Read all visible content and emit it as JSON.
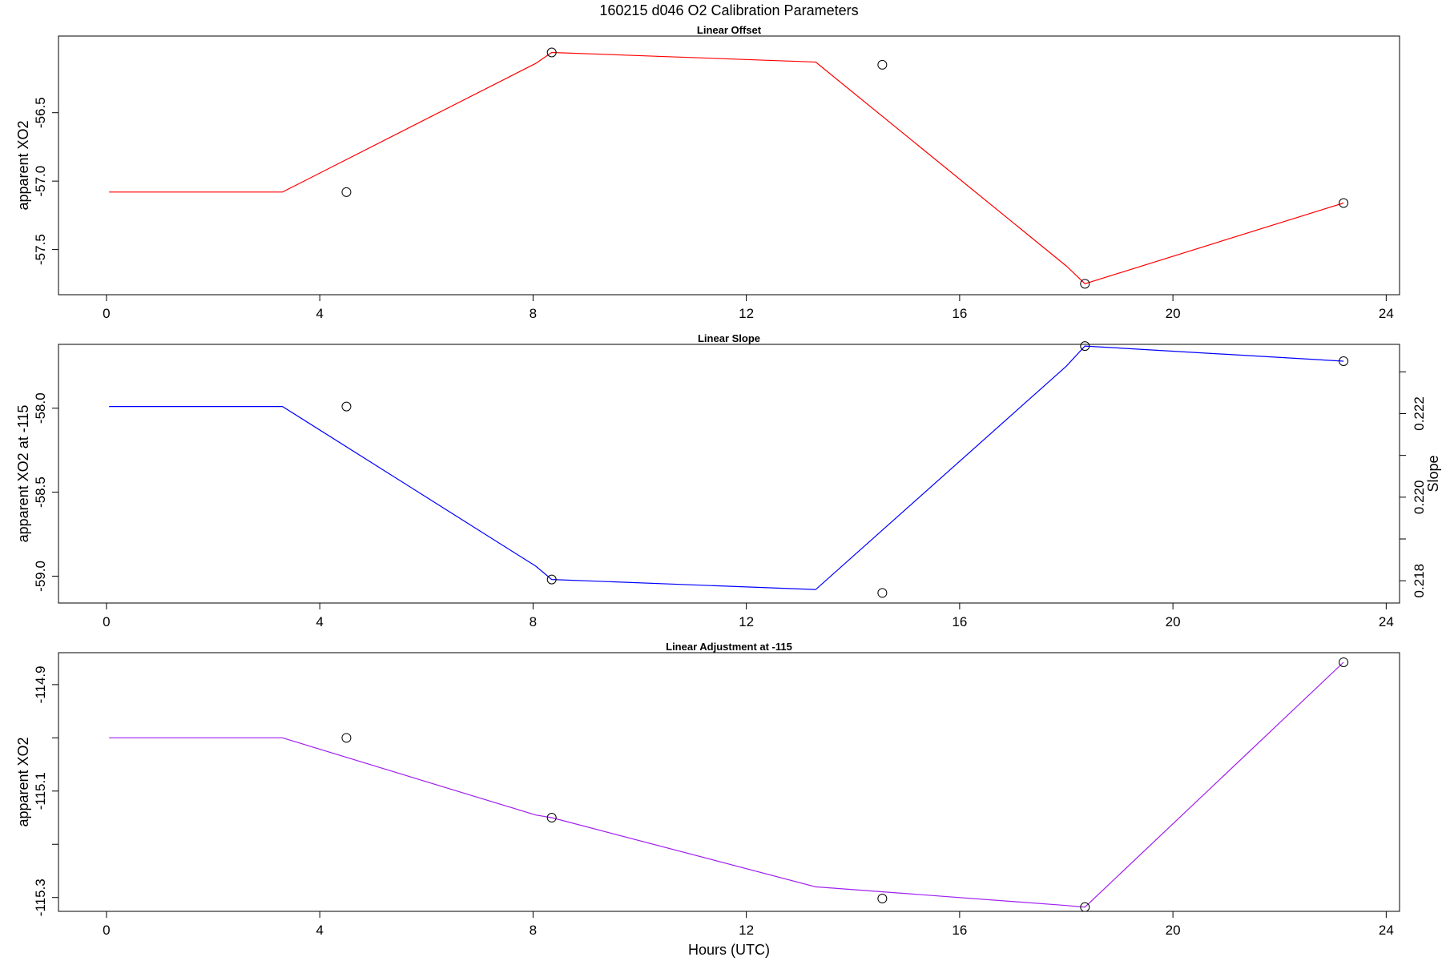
{
  "title": "160215   d046   O2 Calibration Parameters",
  "xlabel": "Hours (UTC)",
  "chart_data": [
    {
      "type": "line",
      "title": "Linear Offset",
      "xlabel": "",
      "ylabel": "apparent XO2",
      "xlim": [
        -0.9,
        24.25
      ],
      "ylim": [
        -57.83,
        -55.94
      ],
      "xticks": [
        0,
        4,
        8,
        12,
        16,
        20,
        24
      ],
      "yticks": [
        -56.5,
        -57.0,
        -57.5
      ],
      "ytick_labels": [
        "-56.5",
        "-57.0",
        "-57.5"
      ],
      "grid": false,
      "line_color": "#ff0000",
      "series": [
        {
          "type": "line",
          "x": [
            0.05,
            3.3,
            8.05,
            8.35,
            13.3,
            18.0,
            18.35,
            23.2
          ],
          "y": [
            -57.08,
            -57.08,
            -56.14,
            -56.06,
            -56.13,
            -57.62,
            -57.75,
            -57.16
          ]
        },
        {
          "type": "scatter",
          "marker": "open-circle",
          "x": [
            4.5,
            8.35,
            14.55,
            18.35,
            23.2
          ],
          "y": [
            -57.08,
            -56.06,
            -56.15,
            -57.75,
            -57.16
          ]
        }
      ]
    },
    {
      "type": "line",
      "title": "Linear Slope",
      "xlabel": "",
      "ylabel": "apparent XO2 at -115",
      "ylabel_right": "Slope",
      "xlim": [
        -0.9,
        24.25
      ],
      "ylim": [
        -59.16,
        -57.62
      ],
      "xticks": [
        0,
        4,
        8,
        12,
        16,
        20,
        24
      ],
      "yticks": [
        -58.0,
        -58.5,
        -59.0
      ],
      "ytick_labels": [
        "-58.0",
        "-58.5",
        "-59.0"
      ],
      "right_yticks": [
        0.218,
        0.219,
        0.22,
        0.221,
        0.222,
        0.223
      ],
      "right_ytick_labels": [
        "0.218",
        "",
        "0.220",
        "",
        "0.222",
        ""
      ],
      "right_axis_map": {
        "y1": [
          -59.0,
          -58.0
        ],
        "y2": [
          0.21811,
          0.22213
        ]
      },
      "grid": false,
      "line_color": "#0000ff",
      "series": [
        {
          "type": "line",
          "x": [
            0.05,
            3.3,
            8.05,
            8.35,
            13.3,
            18.0,
            18.35,
            23.2
          ],
          "y": [
            -57.99,
            -57.99,
            -58.94,
            -59.02,
            -59.08,
            -57.75,
            -57.63,
            -57.72
          ]
        },
        {
          "type": "scatter",
          "marker": "open-circle",
          "x": [
            4.5,
            8.35,
            14.55,
            18.35,
            23.2
          ],
          "y": [
            -57.99,
            -59.02,
            -59.1,
            -57.63,
            -57.72
          ]
        }
      ]
    },
    {
      "type": "line",
      "title": "Linear Adjustment at -115",
      "xlabel": "Hours (UTC)",
      "ylabel": "apparent XO2",
      "xlim": [
        -0.9,
        24.25
      ],
      "ylim": [
        -115.326,
        -114.84
      ],
      "xticks": [
        0,
        4,
        8,
        12,
        16,
        20,
        24
      ],
      "yticks": [
        -114.9,
        -115.0,
        -115.1,
        -115.2,
        -115.3
      ],
      "ytick_labels": [
        "-114.9",
        "",
        "-115.1",
        "",
        "-115.3"
      ],
      "grid": false,
      "line_color": "#a020f0",
      "series": [
        {
          "type": "line",
          "x": [
            0.05,
            3.3,
            8.05,
            8.35,
            13.3,
            18.0,
            18.35,
            23.2
          ],
          "y": [
            -115.0,
            -115.0,
            -115.145,
            -115.15,
            -115.28,
            -115.315,
            -115.318,
            -114.858
          ]
        },
        {
          "type": "scatter",
          "marker": "open-circle",
          "x": [
            4.5,
            8.35,
            14.55,
            18.35,
            23.2
          ],
          "y": [
            -115.0,
            -115.15,
            -115.302,
            -115.318,
            -114.858
          ]
        }
      ]
    }
  ]
}
